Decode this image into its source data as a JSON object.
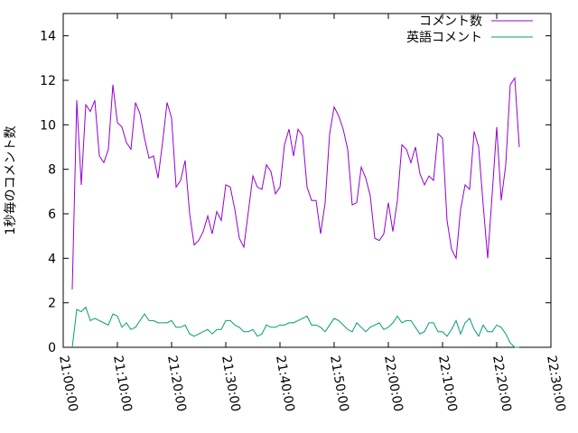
{
  "chart_data": {
    "type": "line",
    "y_label": "1秒毎のコメント数",
    "x": [
      "21:01:40",
      "21:02:30",
      "21:03:20",
      "21:04:10",
      "21:05:00",
      "21:05:50",
      "21:06:40",
      "21:07:30",
      "21:08:20",
      "21:09:10",
      "21:10:00",
      "21:10:50",
      "21:11:40",
      "21:12:30",
      "21:13:20",
      "21:14:10",
      "21:15:00",
      "21:15:50",
      "21:16:40",
      "21:17:30",
      "21:18:20",
      "21:19:10",
      "21:20:00",
      "21:20:50",
      "21:21:40",
      "21:22:30",
      "21:23:20",
      "21:24:10",
      "21:25:00",
      "21:25:50",
      "21:26:40",
      "21:27:30",
      "21:28:20",
      "21:29:10",
      "21:30:00",
      "21:30:50",
      "21:31:40",
      "21:32:30",
      "21:33:20",
      "21:34:10",
      "21:35:00",
      "21:35:50",
      "21:36:40",
      "21:37:30",
      "21:38:20",
      "21:39:10",
      "21:40:00",
      "21:40:50",
      "21:41:40",
      "21:42:30",
      "21:43:20",
      "21:44:10",
      "21:45:00",
      "21:45:50",
      "21:46:40",
      "21:47:30",
      "21:48:20",
      "21:49:10",
      "21:50:00",
      "21:50:50",
      "21:51:40",
      "21:52:30",
      "21:53:20",
      "21:54:10",
      "21:55:00",
      "21:55:50",
      "21:56:40",
      "21:57:30",
      "21:58:20",
      "21:59:10",
      "22:00:00",
      "22:00:50",
      "22:01:40",
      "22:02:30",
      "22:03:20",
      "22:04:10",
      "22:05:00",
      "22:05:50",
      "22:06:40",
      "22:07:30",
      "22:08:20",
      "22:09:10",
      "22:10:00",
      "22:10:50",
      "22:11:40",
      "22:12:30",
      "22:13:20",
      "22:14:10",
      "22:15:00",
      "22:15:50",
      "22:16:40",
      "22:17:30",
      "22:18:20",
      "22:19:10",
      "22:20:00",
      "22:20:50",
      "22:21:40",
      "22:22:30",
      "22:23:20",
      "22:24:10"
    ],
    "series": [
      {
        "name": "コメント数",
        "color": "#9400d3",
        "values": [
          2.6,
          11.1,
          7.3,
          10.9,
          10.6,
          11.1,
          8.6,
          8.3,
          8.9,
          11.8,
          10.1,
          9.9,
          9.2,
          8.9,
          11.0,
          10.5,
          9.4,
          8.5,
          8.6,
          7.6,
          9.2,
          11.0,
          10.3,
          7.2,
          7.5,
          8.4,
          6.0,
          4.6,
          4.8,
          5.2,
          5.9,
          5.1,
          6.1,
          5.7,
          7.3,
          7.2,
          6.2,
          4.9,
          4.5,
          6.1,
          7.7,
          7.2,
          7.1,
          8.2,
          7.9,
          6.9,
          7.2,
          9.1,
          9.8,
          8.6,
          9.8,
          9.5,
          7.2,
          6.6,
          6.6,
          5.1,
          6.5,
          9.6,
          10.8,
          10.4,
          9.8,
          8.9,
          6.4,
          6.5,
          8.1,
          7.6,
          6.8,
          4.9,
          4.8,
          5.1,
          6.5,
          5.2,
          6.6,
          9.1,
          8.9,
          8.3,
          9.0,
          7.8,
          7.3,
          7.7,
          7.5,
          9.6,
          9.4,
          5.7,
          4.4,
          4.0,
          6.2,
          7.3,
          7.1,
          9.7,
          9.0,
          6.4,
          4.0,
          6.9,
          9.9,
          6.6,
          8.2,
          11.8,
          12.1,
          9.0
        ]
      },
      {
        "name": "英語コメント",
        "color": "#009e73",
        "values": [
          0,
          1.7,
          1.6,
          1.8,
          1.2,
          1.3,
          1.2,
          1.1,
          1.0,
          1.5,
          1.4,
          0.9,
          1.1,
          0.8,
          0.9,
          1.2,
          1.5,
          1.2,
          1.2,
          1.1,
          1.1,
          1.1,
          1.2,
          0.9,
          0.9,
          1.0,
          0.6,
          0.5,
          0.6,
          0.7,
          0.8,
          0.6,
          0.8,
          0.8,
          1.2,
          1.2,
          1.0,
          0.9,
          0.7,
          0.7,
          0.8,
          0.5,
          0.6,
          1.0,
          0.9,
          0.9,
          1.0,
          1.0,
          1.1,
          1.1,
          1.2,
          1.3,
          1.4,
          1.0,
          1.0,
          0.9,
          0.7,
          1.0,
          1.3,
          1.2,
          1.0,
          0.8,
          0.7,
          1.1,
          0.9,
          0.7,
          0.9,
          1.0,
          1.1,
          0.8,
          0.9,
          1.1,
          1.4,
          1.1,
          1.2,
          1.2,
          0.9,
          0.6,
          0.7,
          1.1,
          1.1,
          0.7,
          0.7,
          0.5,
          0.8,
          1.2,
          0.6,
          1.1,
          1.3,
          0.8,
          0.5,
          1.0,
          0.7,
          0.7,
          1.0,
          0.9,
          0.6,
          0.2,
          0,
          0
        ]
      }
    ],
    "xlim": [
      "21:00:00",
      "22:30:00"
    ],
    "xticks": [
      "21:00:00",
      "21:10:00",
      "21:20:00",
      "21:30:00",
      "21:40:00",
      "21:50:00",
      "22:00:00",
      "22:10:00",
      "22:20:00",
      "22:30:00"
    ],
    "ylim": [
      0,
      15
    ],
    "yticks": [
      0,
      2,
      4,
      6,
      8,
      10,
      12,
      14
    ],
    "legend": "top-right"
  }
}
